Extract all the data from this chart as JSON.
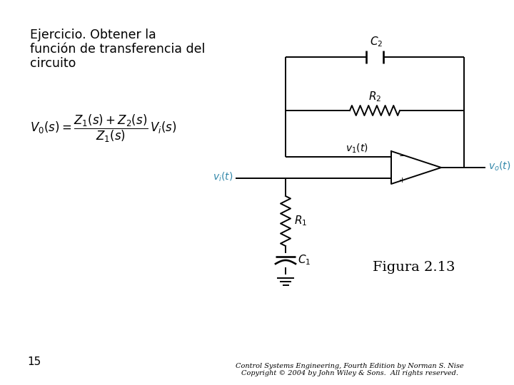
{
  "bg_color": "#ffffff",
  "text_color": "#000000",
  "circuit_color": "#000000",
  "label_color_blue": "#3388aa",
  "vi_label": "$v_i(t)$",
  "vo_label": "$v_o(t)$",
  "v1_label": "$v_1(t)$",
  "R1_label": "$R_1$",
  "R2_label": "$R_2$",
  "C1_label": "$C_1$",
  "C2_label": "$C_2$",
  "figura_label": "Figura 2.13",
  "page_number": "15",
  "title_line1": "Ejercicio. Obtener la",
  "title_line2": "función de transferencia del",
  "title_line3": "circuito"
}
